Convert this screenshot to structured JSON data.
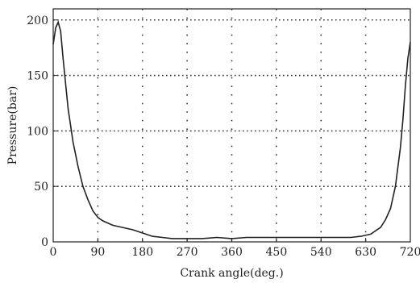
{
  "chart_data": {
    "type": "line",
    "title": "",
    "xlabel": "Crank angle(deg.)",
    "ylabel": "Pressure(bar)",
    "xlim": [
      0,
      720
    ],
    "ylim": [
      0,
      210
    ],
    "x_ticks": [
      "0",
      "90",
      "180",
      "270",
      "360",
      "450",
      "540",
      "630",
      "720"
    ],
    "y_ticks": [
      "0",
      "50",
      "100",
      "150",
      "200"
    ],
    "grid": "dotted",
    "legend": "none",
    "series": [
      {
        "x": [
          0,
          5,
          10,
          15,
          20,
          30,
          40,
          50,
          60,
          70,
          80,
          90,
          100,
          110,
          120,
          140,
          160,
          180,
          200,
          220,
          240,
          270,
          300,
          330,
          360,
          390,
          420,
          450,
          480,
          510,
          540,
          570,
          600,
          620,
          640,
          660,
          670,
          680,
          690,
          700,
          705,
          710,
          715,
          720
        ],
        "y": [
          178,
          193,
          198,
          190,
          165,
          120,
          90,
          68,
          50,
          38,
          28,
          22,
          19,
          17,
          15,
          13,
          11,
          8,
          5,
          4,
          3,
          3,
          3,
          4,
          3,
          4,
          4,
          4,
          4,
          4,
          4,
          4,
          4,
          5,
          7,
          13,
          20,
          30,
          50,
          85,
          110,
          140,
          165,
          180
        ]
      }
    ]
  }
}
